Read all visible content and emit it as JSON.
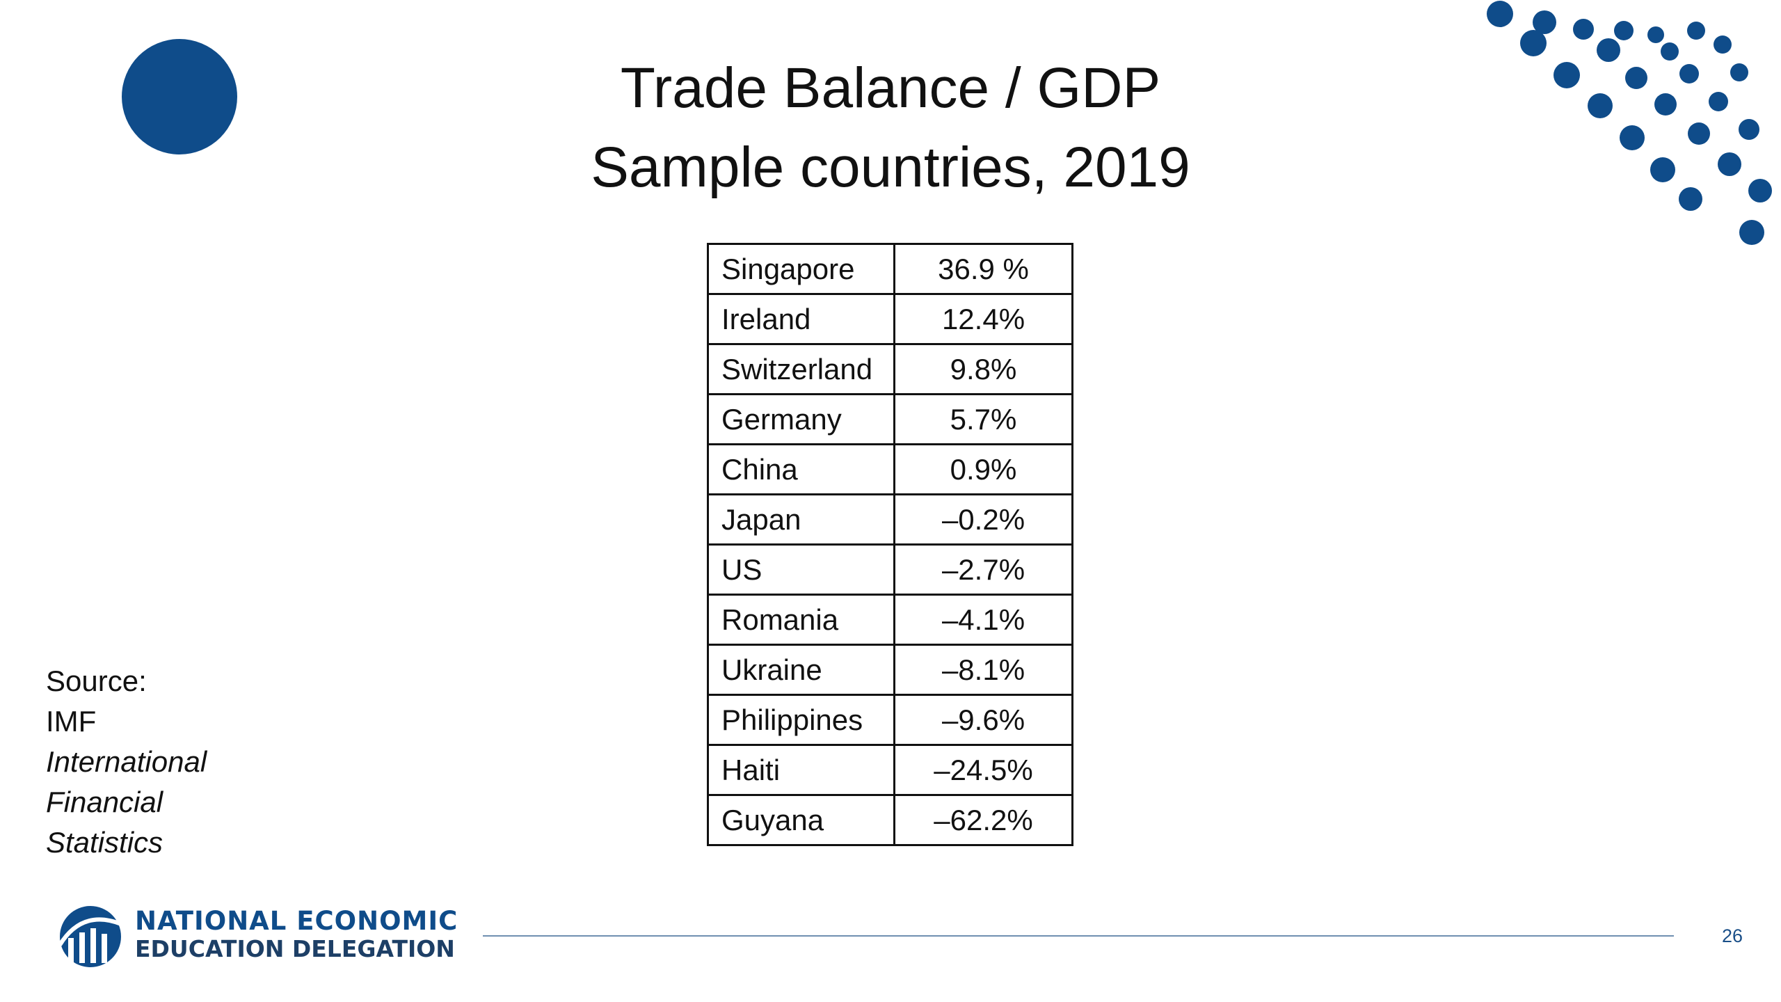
{
  "slide": {
    "title_line1": "Trade Balance / GDP",
    "title_line2": "Sample countries, 2019",
    "page_number": "26",
    "accent_color": "#0f4c8a"
  },
  "table": {
    "rows": [
      {
        "country": "Singapore",
        "value": "36.9 %"
      },
      {
        "country": "Ireland",
        "value": "12.4%"
      },
      {
        "country": "Switzerland",
        "value": "9.8%"
      },
      {
        "country": "Germany",
        "value": "5.7%"
      },
      {
        "country": "China",
        "value": "0.9%"
      },
      {
        "country": "Japan",
        "value": "–0.2%"
      },
      {
        "country": "US",
        "value": "–2.7%"
      },
      {
        "country": "Romania",
        "value": "–4.1%"
      },
      {
        "country": "Ukraine",
        "value": "–8.1%"
      },
      {
        "country": "Philippines",
        "value": "–9.6%"
      },
      {
        "country": "Haiti",
        "value": "–24.5%"
      },
      {
        "country": "Guyana",
        "value": "–62.2%"
      }
    ]
  },
  "source": {
    "label": "Source:",
    "org": "IMF",
    "publication_line1": "International",
    "publication_line2": "Financial",
    "publication_line3": "Statistics"
  },
  "branding": {
    "line1": "NATIONAL ECONOMIC",
    "line2": "EDUCATION DELEGATION",
    "logo_icon": "need-logo-icon"
  }
}
